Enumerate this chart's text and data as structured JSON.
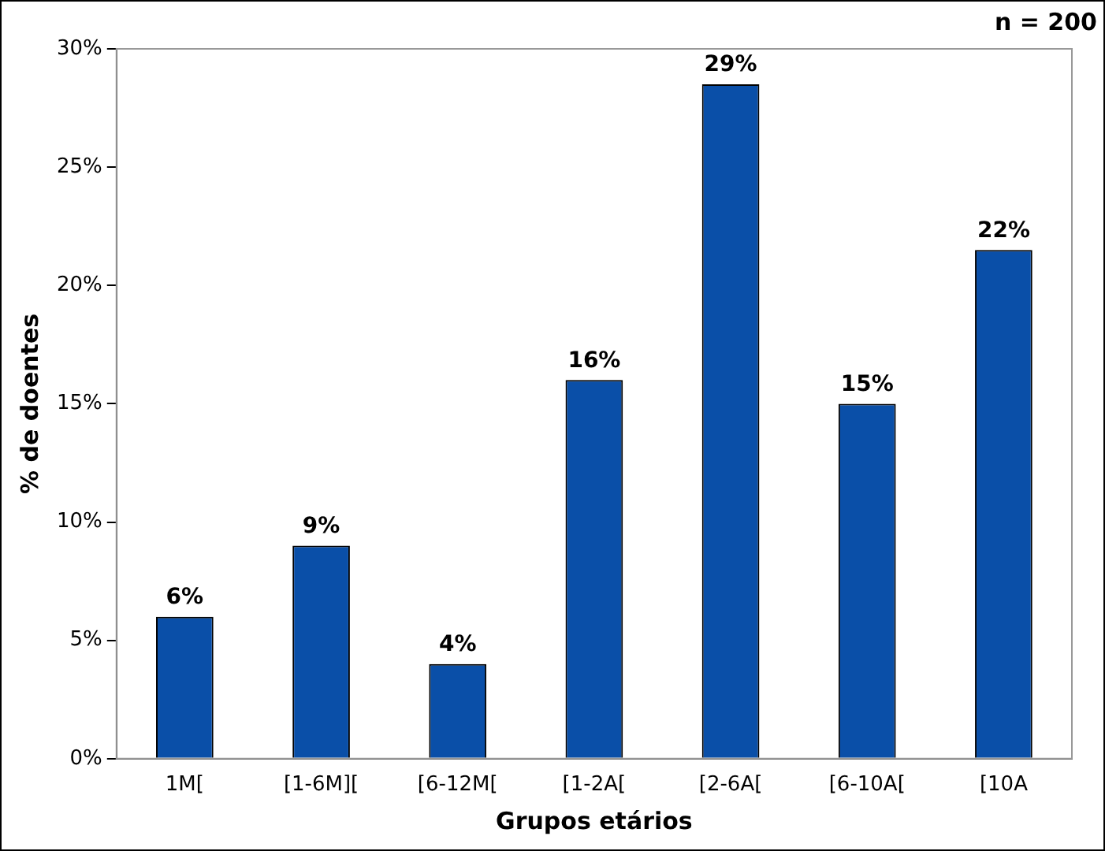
{
  "chart_data": {
    "type": "bar",
    "xlabel": "Grupos etários",
    "ylabel": "% de doentes",
    "annotations": [
      "n = 200"
    ],
    "categories": [
      "1M[",
      "[1-6M][",
      "[6-12M[",
      "[1-2A[",
      "[2-6A[",
      "[6-10A[",
      "[10A"
    ],
    "values": [
      6,
      9,
      4,
      16,
      28.5,
      15,
      21.5
    ],
    "value_labels": [
      "6%",
      "9%",
      "4%",
      "16%",
      "29%",
      "15%",
      "22%"
    ],
    "color": "#0a4fa8",
    "ylim": [
      0,
      30
    ],
    "yticks": [
      {
        "value": 0,
        "label": "0%"
      },
      {
        "value": 5,
        "label": "5%"
      },
      {
        "value": 10,
        "label": "10%"
      },
      {
        "value": 15,
        "label": "15%"
      },
      {
        "value": 20,
        "label": "20%"
      },
      {
        "value": 25,
        "label": "25%"
      },
      {
        "value": 30,
        "label": "30%"
      }
    ],
    "grid": false,
    "legend": false
  }
}
